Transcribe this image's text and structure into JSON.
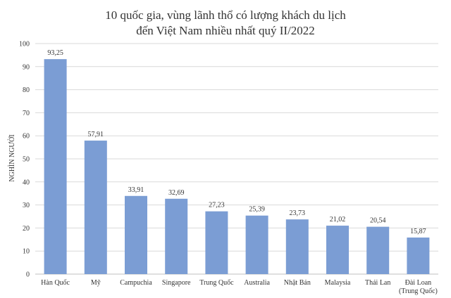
{
  "chart_data": {
    "type": "bar",
    "title_lines": [
      "10 quốc gia, vùng lãnh thổ có lượng khách du lịch",
      "đến Việt Nam nhiều nhất quý II/2022"
    ],
    "ylabel": "NGHÌN NGƯỜI",
    "xlabel": "",
    "ylim": [
      0,
      100
    ],
    "yticks": [
      0,
      10,
      20,
      30,
      40,
      50,
      60,
      70,
      80,
      90,
      100
    ],
    "grid": true,
    "bar_color": "#7b9dd4",
    "categories": [
      [
        "Hàn Quốc"
      ],
      [
        "Mỹ"
      ],
      [
        "Campuchia"
      ],
      [
        "Singapore"
      ],
      [
        "Trung Quốc"
      ],
      [
        "Australia"
      ],
      [
        "Nhật Bản"
      ],
      [
        "Malaysia"
      ],
      [
        "Thái Lan"
      ],
      [
        "Đài Loan",
        "(Trung Quốc)"
      ]
    ],
    "values": [
      93.25,
      57.91,
      33.91,
      32.69,
      27.23,
      25.39,
      23.73,
      21.02,
      20.54,
      15.87
    ],
    "value_labels": [
      "93,25",
      "57,91",
      "33,91",
      "32,69",
      "27,23",
      "25,39",
      "23,73",
      "21,02",
      "20,54",
      "15,87"
    ]
  }
}
